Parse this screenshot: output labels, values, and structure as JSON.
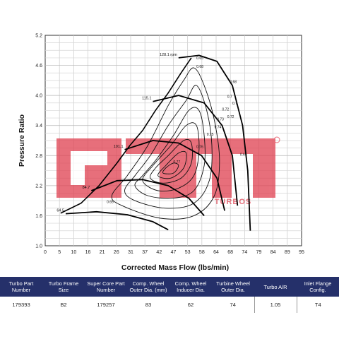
{
  "chart_data": {
    "type": "line",
    "title": "",
    "xlabel": "Corrected Mass Flow (lbs/min)",
    "ylabel": "Pressure Ratio",
    "xlim": [
      0,
      100
    ],
    "ylim": [
      1.0,
      5.2
    ],
    "x_ticks": [
      "0",
      "5",
      "10",
      "16",
      "21",
      "26",
      "31",
      "37",
      "42",
      "47",
      "53",
      "58",
      "64",
      "68",
      "74",
      "79",
      "84",
      "89",
      "95"
    ],
    "y_ticks": [
      "1.0",
      "1.6",
      "2.2",
      "2.8",
      "3.4",
      "4.0",
      "4.6",
      "5.2"
    ],
    "grid": true,
    "surge_line": [
      [
        6,
        1.65
      ],
      [
        14,
        1.85
      ],
      [
        21,
        2.2
      ],
      [
        28,
        2.65
      ],
      [
        33,
        3.0
      ],
      [
        38,
        3.3
      ],
      [
        43,
        3.7
      ],
      [
        48,
        4.05
      ],
      [
        53,
        4.45
      ],
      [
        57,
        4.75
      ]
    ],
    "speed_lines": [
      {
        "label": "64.5",
        "points": [
          [
            8,
            1.64
          ],
          [
            20,
            1.68
          ],
          [
            32,
            1.62
          ],
          [
            42,
            1.48
          ],
          [
            48,
            1.32
          ]
        ]
      },
      {
        "label": "84.7",
        "points": [
          [
            18,
            2.1
          ],
          [
            28,
            2.3
          ],
          [
            38,
            2.32
          ],
          [
            48,
            2.2
          ],
          [
            56,
            1.95
          ],
          [
            62,
            1.6
          ]
        ]
      },
      {
        "label": "101.1",
        "points": [
          [
            31,
            2.92
          ],
          [
            42,
            3.1
          ],
          [
            52,
            3.05
          ],
          [
            61,
            2.8
          ],
          [
            67,
            2.35
          ],
          [
            70,
            1.7
          ]
        ]
      },
      {
        "label": "115.1",
        "points": [
          [
            42,
            3.88
          ],
          [
            52,
            4.0
          ],
          [
            62,
            3.85
          ],
          [
            69,
            3.4
          ],
          [
            73,
            2.8
          ],
          [
            75,
            1.8
          ]
        ]
      },
      {
        "label": "128.1 rpm",
        "points": [
          [
            52,
            4.75
          ],
          [
            60,
            4.8
          ],
          [
            67,
            4.68
          ],
          [
            73,
            4.2
          ],
          [
            77,
            3.4
          ],
          [
            79,
            2.5
          ],
          [
            80,
            1.3
          ]
        ]
      }
    ],
    "efficiency_labels": [
      "0.65",
      "0.68",
      "0.7",
      "0.72",
      "0.73",
      "0.74",
      "0.75",
      "0.76",
      "0.77",
      "0.65",
      "0.68",
      "0.7",
      "0.72",
      "0.65"
    ],
    "logo": {
      "text": "GTX",
      "subtext": "TURBOS",
      "color": "#e04050"
    }
  },
  "table": {
    "headers": [
      "Turbo Part Number",
      "Turbo Frame Size",
      "Super Core Part Number",
      "Comp. Wheel Outer Dia. (mm)",
      "Comp. Wheel Inducer Dia.",
      "Turbine Wheel Outer Dia.",
      "Turbo A/R",
      "Inlet Flange Config."
    ],
    "values": [
      "179393",
      "B2",
      "179257",
      "83",
      "62",
      "74",
      "1.05",
      "T4"
    ]
  }
}
